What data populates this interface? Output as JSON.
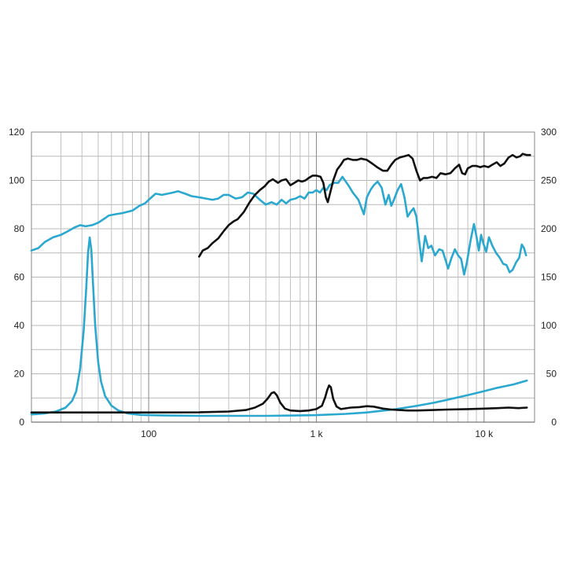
{
  "chart_data": {
    "type": "line",
    "x_scale": "log",
    "xlim": [
      20,
      20000
    ],
    "ylim_left": [
      0,
      120
    ],
    "ylim_right": [
      0,
      300
    ],
    "grid": true,
    "x_tick_labels": [
      {
        "value": 100,
        "label": "100"
      },
      {
        "value": 1000,
        "label": "1 k"
      },
      {
        "value": 10000,
        "label": "10 k"
      }
    ],
    "y_left_tick_labels": [
      "0",
      "20",
      "40",
      "60",
      "80",
      "100",
      "120"
    ],
    "y_right_tick_labels": [
      "0",
      "50",
      "100",
      "150",
      "200",
      "250",
      "300"
    ],
    "series": [
      {
        "color": "#2aa8d0",
        "axis": "left",
        "points": [
          [
            20,
            71
          ],
          [
            22,
            72
          ],
          [
            24,
            74.5
          ],
          [
            27,
            76.5
          ],
          [
            30,
            77.5
          ],
          [
            33,
            79
          ],
          [
            36,
            80.5
          ],
          [
            39,
            81.5
          ],
          [
            42,
            81
          ],
          [
            46,
            81.5
          ],
          [
            50,
            82.5
          ],
          [
            54,
            84
          ],
          [
            58,
            85.5
          ],
          [
            63,
            86
          ],
          [
            70,
            86.5
          ],
          [
            80,
            87.5
          ],
          [
            88,
            89.5
          ],
          [
            95,
            90.5
          ],
          [
            102,
            92.5
          ],
          [
            110,
            94.5
          ],
          [
            120,
            94
          ],
          [
            130,
            94.5
          ],
          [
            140,
            95
          ],
          [
            150,
            95.5
          ],
          [
            165,
            94.5
          ],
          [
            180,
            93.5
          ],
          [
            200,
            93
          ],
          [
            220,
            92.5
          ],
          [
            240,
            92
          ],
          [
            260,
            92.5
          ],
          [
            280,
            94
          ],
          [
            300,
            94
          ],
          [
            330,
            92.5
          ],
          [
            360,
            93
          ],
          [
            390,
            95
          ],
          [
            420,
            94.5
          ],
          [
            460,
            92
          ],
          [
            500,
            90
          ],
          [
            540,
            91
          ],
          [
            580,
            90
          ],
          [
            620,
            92
          ],
          [
            660,
            90.5
          ],
          [
            700,
            92
          ],
          [
            750,
            92.5
          ],
          [
            800,
            93.5
          ],
          [
            850,
            92.5
          ],
          [
            900,
            95
          ],
          [
            950,
            95
          ],
          [
            1000,
            96
          ],
          [
            1050,
            95
          ],
          [
            1100,
            97
          ],
          [
            1150,
            96
          ],
          [
            1200,
            98
          ],
          [
            1280,
            99
          ],
          [
            1350,
            99
          ],
          [
            1430,
            101.5
          ],
          [
            1550,
            98
          ],
          [
            1650,
            95
          ],
          [
            1780,
            92
          ],
          [
            1850,
            89
          ],
          [
            1920,
            86
          ],
          [
            2000,
            93
          ],
          [
            2100,
            96
          ],
          [
            2200,
            98
          ],
          [
            2320,
            99.5
          ],
          [
            2450,
            97
          ],
          [
            2580,
            90
          ],
          [
            2700,
            94
          ],
          [
            2800,
            89.5
          ],
          [
            2900,
            92
          ],
          [
            3050,
            96
          ],
          [
            3200,
            98.5
          ],
          [
            3350,
            93
          ],
          [
            3500,
            85
          ],
          [
            3650,
            87
          ],
          [
            3800,
            88.5
          ],
          [
            3950,
            85
          ],
          [
            4100,
            75
          ],
          [
            4250,
            66.5
          ],
          [
            4450,
            77
          ],
          [
            4650,
            72
          ],
          [
            4850,
            73
          ],
          [
            5100,
            69
          ],
          [
            5400,
            71.5
          ],
          [
            5650,
            71
          ],
          [
            5900,
            67
          ],
          [
            6100,
            63.5
          ],
          [
            6400,
            68
          ],
          [
            6700,
            71.5
          ],
          [
            7000,
            69
          ],
          [
            7300,
            67.5
          ],
          [
            7600,
            61
          ],
          [
            7900,
            66
          ],
          [
            8300,
            75
          ],
          [
            8700,
            82
          ],
          [
            9000,
            77
          ],
          [
            9300,
            71
          ],
          [
            9600,
            77.5
          ],
          [
            9900,
            74
          ],
          [
            10300,
            70.5
          ],
          [
            10700,
            76.5
          ],
          [
            11200,
            73
          ],
          [
            11800,
            70
          ],
          [
            12400,
            68
          ],
          [
            13000,
            65.5
          ],
          [
            13600,
            65
          ],
          [
            14200,
            62
          ],
          [
            14800,
            63
          ],
          [
            15500,
            66
          ],
          [
            16200,
            68
          ],
          [
            16800,
            73.5
          ],
          [
            17300,
            72
          ],
          [
            17800,
            69
          ]
        ]
      },
      {
        "color": "#111111",
        "axis": "left",
        "points": [
          [
            200,
            68.5
          ],
          [
            210,
            71
          ],
          [
            225,
            72
          ],
          [
            240,
            74
          ],
          [
            260,
            76
          ],
          [
            280,
            79
          ],
          [
            300,
            81.5
          ],
          [
            320,
            83
          ],
          [
            340,
            84
          ],
          [
            370,
            87
          ],
          [
            400,
            91
          ],
          [
            430,
            94
          ],
          [
            460,
            96
          ],
          [
            490,
            97.5
          ],
          [
            520,
            99.5
          ],
          [
            550,
            100.5
          ],
          [
            590,
            99
          ],
          [
            620,
            100
          ],
          [
            660,
            100.5
          ],
          [
            700,
            98
          ],
          [
            740,
            99
          ],
          [
            780,
            100
          ],
          [
            820,
            99.5
          ],
          [
            860,
            100
          ],
          [
            900,
            101
          ],
          [
            950,
            102
          ],
          [
            1000,
            102
          ],
          [
            1060,
            101.5
          ],
          [
            1100,
            99
          ],
          [
            1140,
            93
          ],
          [
            1170,
            91
          ],
          [
            1210,
            95
          ],
          [
            1260,
            100
          ],
          [
            1330,
            104.5
          ],
          [
            1400,
            106.5
          ],
          [
            1460,
            108.5
          ],
          [
            1540,
            109
          ],
          [
            1650,
            108.5
          ],
          [
            1750,
            108.5
          ],
          [
            1850,
            109
          ],
          [
            2000,
            108.5
          ],
          [
            2150,
            107
          ],
          [
            2300,
            105.5
          ],
          [
            2500,
            104
          ],
          [
            2650,
            104
          ],
          [
            2800,
            106.5
          ],
          [
            2950,
            108.5
          ],
          [
            3150,
            109.5
          ],
          [
            3350,
            110
          ],
          [
            3550,
            110.5
          ],
          [
            3750,
            109
          ],
          [
            3950,
            104
          ],
          [
            4150,
            100
          ],
          [
            4350,
            101
          ],
          [
            4600,
            101
          ],
          [
            4900,
            101.5
          ],
          [
            5200,
            101
          ],
          [
            5500,
            103
          ],
          [
            5900,
            102.5
          ],
          [
            6300,
            103
          ],
          [
            6700,
            105
          ],
          [
            7100,
            106.5
          ],
          [
            7400,
            103
          ],
          [
            7700,
            102.5
          ],
          [
            8000,
            105
          ],
          [
            8500,
            106
          ],
          [
            9000,
            106
          ],
          [
            9500,
            105.5
          ],
          [
            10000,
            106
          ],
          [
            10600,
            105.5
          ],
          [
            11200,
            106.5
          ],
          [
            11900,
            107.5
          ],
          [
            12500,
            106
          ],
          [
            13200,
            107
          ],
          [
            14000,
            109.5
          ],
          [
            14800,
            110.5
          ],
          [
            15600,
            109.5
          ],
          [
            16400,
            110
          ],
          [
            17000,
            111
          ],
          [
            18000,
            110.5
          ],
          [
            18800,
            110.5
          ]
        ]
      },
      {
        "color": "#2aa8d0",
        "axis": "right",
        "points": [
          [
            20,
            8
          ],
          [
            24,
            9
          ],
          [
            28,
            11
          ],
          [
            32,
            15
          ],
          [
            35,
            22
          ],
          [
            37,
            32
          ],
          [
            39,
            55
          ],
          [
            41,
            95
          ],
          [
            42.5,
            140
          ],
          [
            43.5,
            175
          ],
          [
            44.5,
            191
          ],
          [
            45.5,
            178
          ],
          [
            46.5,
            145
          ],
          [
            48,
            100
          ],
          [
            50,
            62
          ],
          [
            52,
            42
          ],
          [
            55,
            27
          ],
          [
            60,
            17
          ],
          [
            66,
            12
          ],
          [
            75,
            9
          ],
          [
            90,
            7.5
          ],
          [
            120,
            7
          ],
          [
            200,
            6.5
          ],
          [
            300,
            6.5
          ],
          [
            500,
            6.5
          ],
          [
            800,
            7
          ],
          [
            1000,
            7.2
          ],
          [
            1500,
            8.5
          ],
          [
            2000,
            10
          ],
          [
            3000,
            13.5
          ],
          [
            4000,
            17
          ],
          [
            5000,
            20
          ],
          [
            6000,
            23
          ],
          [
            8000,
            28
          ],
          [
            10000,
            32
          ],
          [
            12000,
            35.5
          ],
          [
            15000,
            39
          ],
          [
            18000,
            43
          ]
        ]
      },
      {
        "color": "#111111",
        "axis": "right",
        "points": [
          [
            20,
            10
          ],
          [
            30,
            10
          ],
          [
            50,
            10
          ],
          [
            100,
            10
          ],
          [
            200,
            10.2
          ],
          [
            300,
            11
          ],
          [
            380,
            12.5
          ],
          [
            430,
            15
          ],
          [
            480,
            19
          ],
          [
            510,
            24
          ],
          [
            540,
            30
          ],
          [
            560,
            31
          ],
          [
            580,
            28
          ],
          [
            610,
            20
          ],
          [
            650,
            14
          ],
          [
            700,
            12
          ],
          [
            800,
            11.5
          ],
          [
            900,
            12
          ],
          [
            1000,
            13.5
          ],
          [
            1080,
            17
          ],
          [
            1130,
            26
          ],
          [
            1160,
            33
          ],
          [
            1190,
            38
          ],
          [
            1220,
            36
          ],
          [
            1260,
            24
          ],
          [
            1320,
            16
          ],
          [
            1400,
            13.5
          ],
          [
            1600,
            15
          ],
          [
            1800,
            15.5
          ],
          [
            2000,
            16.5
          ],
          [
            2200,
            16
          ],
          [
            2500,
            14
          ],
          [
            2800,
            13
          ],
          [
            3500,
            12
          ],
          [
            4000,
            12
          ],
          [
            5000,
            12.5
          ],
          [
            6000,
            13
          ],
          [
            8000,
            13.5
          ],
          [
            10000,
            14
          ],
          [
            12000,
            14.5
          ],
          [
            14000,
            15
          ],
          [
            16000,
            14.5
          ],
          [
            18000,
            15
          ]
        ]
      }
    ]
  }
}
